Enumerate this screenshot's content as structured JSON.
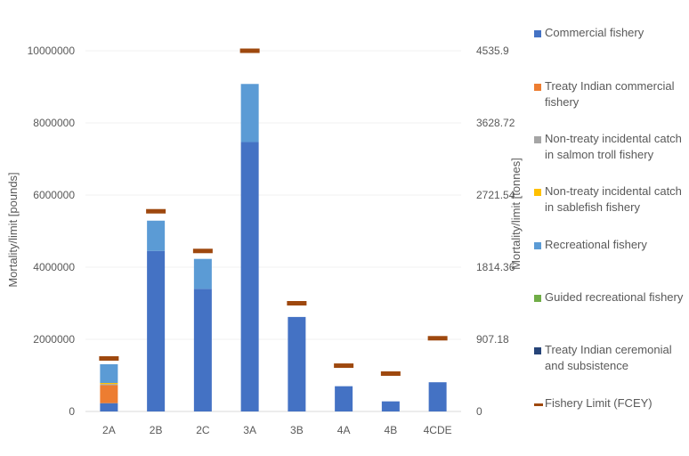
{
  "chart_data": {
    "type": "bar",
    "stacked": true,
    "categories": [
      "2A",
      "2B",
      "2C",
      "3A",
      "3B",
      "4A",
      "4B",
      "4CDE"
    ],
    "ylabel": "Mortality/limit [pounds]",
    "ylabel_right": "Mortality/limit [tonnes]",
    "ylim": [
      0,
      10000000
    ],
    "yticks": [
      "0",
      "2000000",
      "4000000",
      "6000000",
      "8000000",
      "10000000"
    ],
    "yticks_right": [
      "0",
      "907.18",
      "1814.36",
      "2721.54",
      "3628.72",
      "4535.9"
    ],
    "grid": true,
    "legend_position": "right",
    "series": [
      {
        "name": "Commercial fishery",
        "color": "#4472C4",
        "values": [
          230000,
          4450000,
          3400000,
          7470000,
          2620000,
          700000,
          280000,
          810000
        ]
      },
      {
        "name": "Treaty Indian commercial fishery",
        "color": "#ED7D31",
        "values": [
          500000,
          0,
          0,
          0,
          0,
          0,
          0,
          0
        ]
      },
      {
        "name": "Non-treaty incidental catch in salmon troll fishery",
        "color": "#A5A5A5",
        "values": [
          30000,
          0,
          0,
          0,
          0,
          0,
          0,
          0
        ]
      },
      {
        "name": "Non-treaty incidental catch in sablefish fishery",
        "color": "#FFC000",
        "values": [
          30000,
          0,
          0,
          0,
          0,
          0,
          0,
          0
        ]
      },
      {
        "name": "Recreational fishery",
        "color": "#5B9BD5",
        "values": [
          520000,
          840000,
          830000,
          1610000,
          0,
          0,
          0,
          0
        ]
      },
      {
        "name": "Guided recreational fishery",
        "color": "#70AD47",
        "values": [
          0,
          0,
          0,
          0,
          0,
          0,
          0,
          0
        ]
      },
      {
        "name": "Treaty Indian ceremonial and subsistence",
        "color": "#264478",
        "values": [
          0,
          0,
          0,
          0,
          0,
          0,
          0,
          0
        ]
      }
    ],
    "limit_series": {
      "name": "Fishery Limit (FCEY)",
      "color": "#9E480E",
      "values": [
        1470000,
        5550000,
        4450000,
        10000000,
        3000000,
        1270000,
        1050000,
        2030000
      ]
    }
  }
}
